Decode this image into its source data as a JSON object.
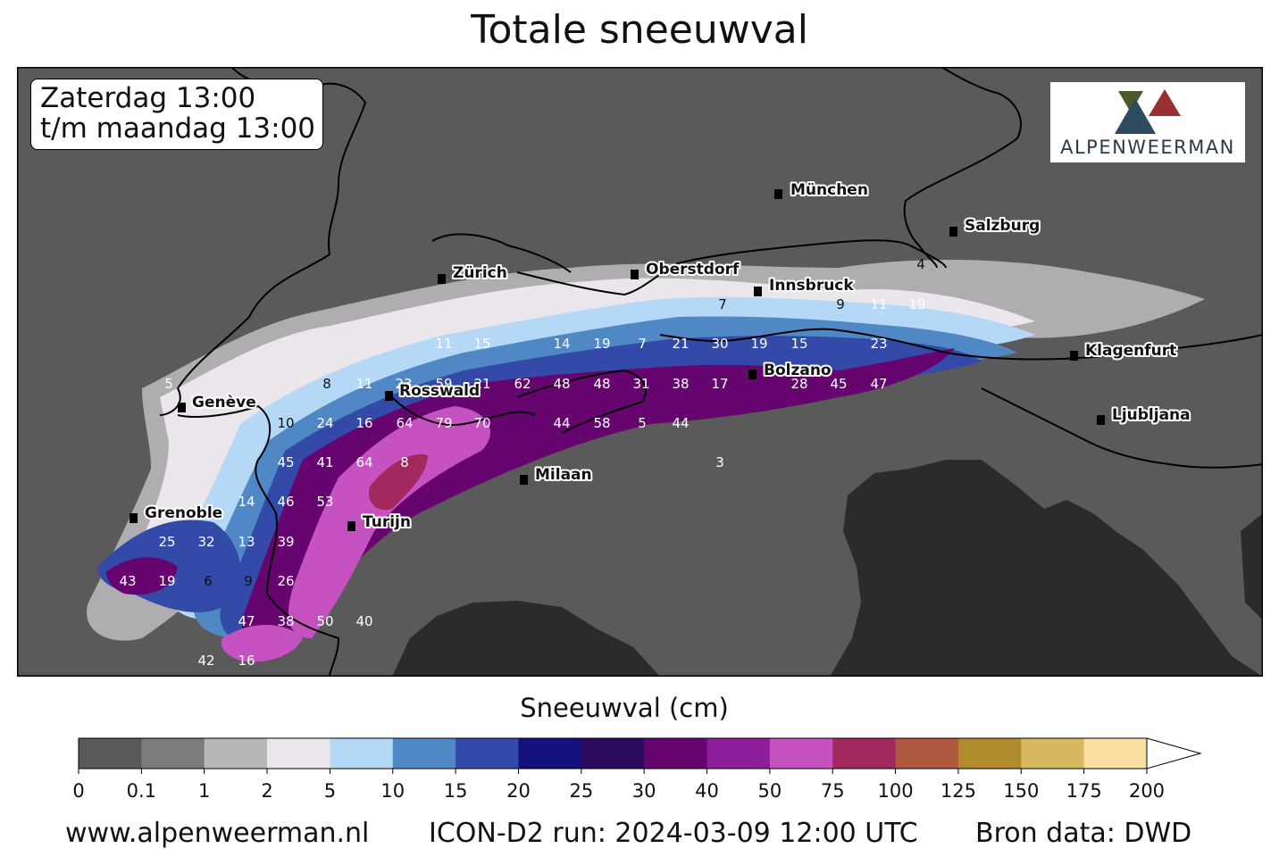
{
  "title": "Totale sneeuwval",
  "period": {
    "line1": "Zaterdag 13:00",
    "line2": "t/m maandag 13:00"
  },
  "logo": {
    "text": "ALPENWEERMAN",
    "colors": {
      "dark": "#2e4a5e",
      "red": "#9a2f32",
      "green": "#4a5a28"
    }
  },
  "map": {
    "colors": {
      "land": "#5a5a5a",
      "sea": "#2b2b2b",
      "border": "#000000"
    },
    "cities": [
      {
        "name": "München"
      },
      {
        "name": "Salzburg"
      },
      {
        "name": "Zürich"
      },
      {
        "name": "Oberstdorf"
      },
      {
        "name": "Innsbruck"
      },
      {
        "name": "Klagenfurt"
      },
      {
        "name": "Bolzano"
      },
      {
        "name": "Genève"
      },
      {
        "name": "Rosswald"
      },
      {
        "name": "Ljubljana"
      },
      {
        "name": "Milaan"
      },
      {
        "name": "Grenoble"
      },
      {
        "name": "Turijn"
      }
    ],
    "values": [
      "4",
      "7",
      "9",
      "11",
      "19",
      "11",
      "15",
      "14",
      "19",
      "7",
      "21",
      "30",
      "19",
      "15",
      "23",
      "5",
      "8",
      "11",
      "23",
      "59",
      "21",
      "62",
      "48",
      "48",
      "31",
      "38",
      "17",
      "28",
      "45",
      "47",
      "10",
      "24",
      "16",
      "64",
      "79",
      "70",
      "44",
      "58",
      "5",
      "44",
      "45",
      "41",
      "64",
      "8",
      "3",
      "14",
      "46",
      "53",
      "25",
      "32",
      "13",
      "39",
      "43",
      "19",
      "6",
      "9",
      "26",
      "47",
      "38",
      "50",
      "40",
      "42",
      "16"
    ]
  },
  "colorbar": {
    "title": "Sneeuwval (cm)",
    "ticks": [
      "0",
      "0.1",
      "1",
      "2",
      "5",
      "10",
      "15",
      "20",
      "25",
      "30",
      "40",
      "50",
      "75",
      "100",
      "125",
      "150",
      "175",
      "200"
    ],
    "colors": [
      "#595959",
      "#7b7b7b",
      "#b9b6ba",
      "#ebe6ec",
      "#b5d8f6",
      "#5088c5",
      "#334aa8",
      "#15127e",
      "#2c0a5e",
      "#670570",
      "#8e1e9c",
      "#c652c2",
      "#a3285e",
      "#b05840",
      "#b08c2c",
      "#d8b860",
      "#f7e0a2"
    ]
  },
  "footer": {
    "website": "www.alpenweerman.nl",
    "run": "ICON-D2 run: 2024-03-09 12:00 UTC",
    "source": "Bron data: DWD"
  }
}
